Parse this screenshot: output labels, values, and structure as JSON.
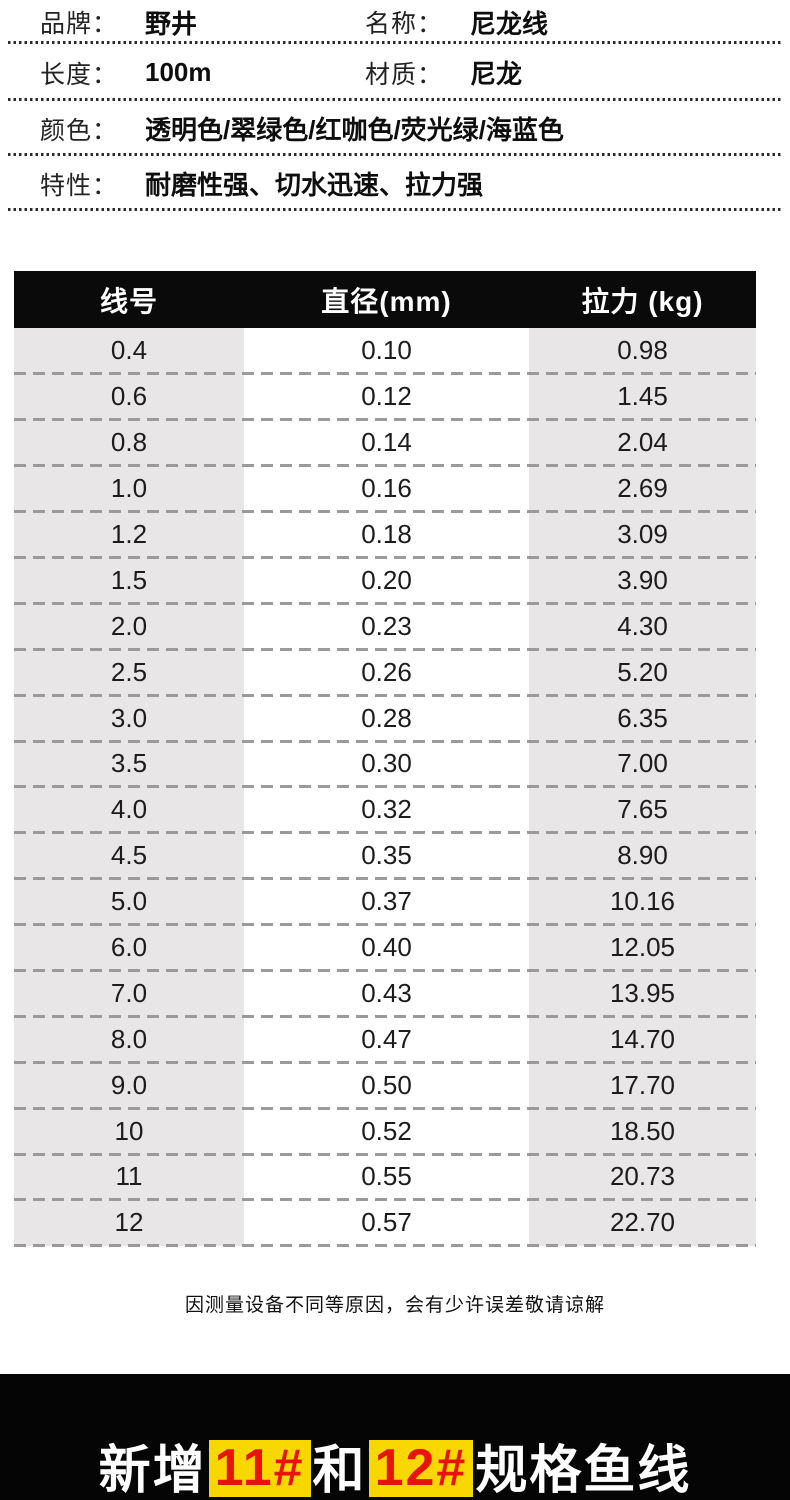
{
  "specs": [
    {
      "label": "品牌：",
      "value": "野井"
    },
    {
      "label": "名称：",
      "value": "尼龙线"
    },
    {
      "label": "长度：",
      "value": "100m"
    },
    {
      "label": "材质：",
      "value": "尼龙"
    },
    {
      "label": "颜色：",
      "value": "透明色/翠绿色/红咖色/荧光绿/海蓝色"
    },
    {
      "label": "特性：",
      "value": "耐磨性强、切水迅速、拉力强"
    }
  ],
  "table": {
    "headers": [
      "线号",
      "直径(mm)",
      "拉力 (kg)"
    ],
    "rows": [
      [
        "0.4",
        "0.10",
        "0.98"
      ],
      [
        "0.6",
        "0.12",
        "1.45"
      ],
      [
        "0.8",
        "0.14",
        "2.04"
      ],
      [
        "1.0",
        "0.16",
        "2.69"
      ],
      [
        "1.2",
        "0.18",
        "3.09"
      ],
      [
        "1.5",
        "0.20",
        "3.90"
      ],
      [
        "2.0",
        "0.23",
        "4.30"
      ],
      [
        "2.5",
        "0.26",
        "5.20"
      ],
      [
        "3.0",
        "0.28",
        "6.35"
      ],
      [
        "3.5",
        "0.30",
        "7.00"
      ],
      [
        "4.0",
        "0.32",
        "7.65"
      ],
      [
        "4.5",
        "0.35",
        "8.90"
      ],
      [
        "5.0",
        "0.37",
        "10.16"
      ],
      [
        "6.0",
        "0.40",
        "12.05"
      ],
      [
        "7.0",
        "0.43",
        "13.95"
      ],
      [
        "8.0",
        "0.47",
        "14.70"
      ],
      [
        "9.0",
        "0.50",
        "17.70"
      ],
      [
        "10",
        "0.52",
        "18.50"
      ],
      [
        "11",
        "0.55",
        "20.73"
      ],
      [
        "12",
        "0.57",
        "22.70"
      ]
    ]
  },
  "footnote": "因测量设备不同等原因，会有少许误差敬请谅解",
  "banner": {
    "prefix": "新增",
    "highlight1": "11#",
    "middle": "和",
    "highlight2": "12#",
    "suffix": "规格鱼线"
  },
  "colors": {
    "header_bg": "#0a0a0a",
    "cell_gray": "#e8e6e7",
    "dash_gray": "#9a9a9a",
    "banner_bg": "#050505",
    "highlight_bg": "#f8d800",
    "highlight_text": "#e8140c"
  }
}
